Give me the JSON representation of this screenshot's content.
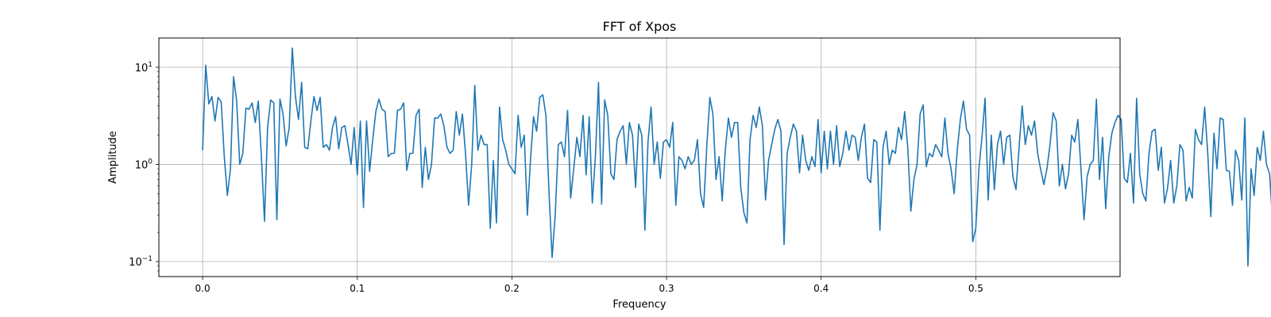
{
  "chart_data": {
    "type": "line",
    "title": "FFT of Xpos",
    "xlabel": "Frequency",
    "ylabel": "Amplitude",
    "xlim": [
      -0.0283,
      0.5933
    ],
    "ylim": [
      0.07,
      20
    ],
    "yscale": "log",
    "grid": true,
    "x_ticks": [
      0.0,
      0.1,
      0.2,
      0.3,
      0.4,
      0.5
    ],
    "x_tick_labels": [
      "0.0",
      "0.1",
      "0.2",
      "0.3",
      "0.4",
      "0.5"
    ],
    "y_ticks": [
      {
        "value": 0.1,
        "base": "10",
        "exp": "−1"
      },
      {
        "value": 1,
        "base": "10",
        "exp": "0"
      },
      {
        "value": 10,
        "base": "10",
        "exp": "1"
      }
    ],
    "line_color": "#1f77b4",
    "series": [
      {
        "x_start": 0.0,
        "x_step": 0.002,
        "values": [
          1.4,
          10.5,
          4.2,
          5.0,
          2.8,
          4.9,
          4.4,
          1.2,
          0.48,
          0.9,
          8.0,
          4.5,
          1.0,
          1.3,
          3.8,
          3.7,
          4.3,
          2.7,
          4.5,
          1.2,
          0.26,
          2.4,
          4.6,
          4.3,
          0.27,
          4.7,
          3.3,
          1.55,
          2.4,
          15.8,
          5.0,
          2.9,
          7.0,
          1.5,
          1.45,
          2.8,
          5.0,
          3.6,
          4.9,
          1.5,
          1.6,
          1.4,
          2.4,
          3.1,
          1.45,
          2.4,
          2.5,
          1.6,
          1.0,
          2.4,
          0.78,
          2.8,
          0.36,
          2.8,
          0.85,
          1.8,
          3.5,
          4.7,
          3.7,
          3.5,
          1.2,
          1.3,
          1.3,
          3.6,
          3.7,
          4.3,
          0.87,
          1.3,
          1.3,
          3.2,
          3.7,
          0.58,
          1.5,
          0.7,
          1.0,
          3.0,
          3.0,
          3.3,
          2.5,
          1.5,
          1.3,
          1.4,
          3.5,
          2.0,
          3.3,
          1.3,
          0.38,
          1.0,
          6.5,
          1.4,
          2.0,
          1.6,
          1.6,
          0.22,
          1.1,
          0.25,
          3.9,
          1.8,
          1.4,
          1.0,
          0.9,
          0.8,
          3.2,
          1.5,
          2.0,
          0.3,
          1.1,
          3.1,
          2.2,
          4.9,
          5.2,
          3.2,
          0.52,
          0.11,
          0.3,
          1.6,
          1.7,
          1.2,
          3.6,
          0.45,
          0.9,
          1.9,
          1.2,
          3.2,
          0.78,
          3.1,
          0.4,
          1.2,
          7.0,
          0.39,
          4.6,
          3.2,
          0.8,
          0.7,
          1.8,
          2.2,
          2.5,
          1.0,
          2.7,
          2.0,
          0.58,
          2.6,
          2.0,
          0.21,
          1.7,
          3.9,
          1.0,
          1.7,
          0.72,
          1.7,
          1.8,
          1.5,
          2.7,
          0.38,
          1.2,
          1.1,
          0.9,
          1.2,
          1.0,
          1.1,
          1.8,
          0.5,
          0.36,
          1.5,
          4.9,
          3.3,
          0.7,
          1.2,
          0.42,
          1.4,
          3.0,
          1.9,
          2.7,
          2.7,
          0.58,
          0.32,
          0.25,
          1.8,
          3.2,
          2.4,
          3.9,
          2.5,
          0.43,
          1.1,
          1.6,
          2.3,
          2.9,
          2.2,
          0.15,
          1.3,
          1.9,
          2.6,
          2.2,
          0.82,
          2.0,
          1.1,
          0.87,
          1.2,
          0.95,
          2.9,
          0.82,
          2.2,
          0.9,
          2.2,
          1.0,
          2.5,
          0.95,
          1.3,
          2.2,
          1.4,
          2.0,
          1.9,
          1.1,
          1.9,
          2.6,
          0.72,
          0.65,
          1.8,
          1.7,
          0.21,
          1.5,
          2.2,
          1.0,
          1.4,
          1.3,
          2.4,
          1.8,
          3.5,
          1.5,
          0.33,
          0.7,
          1.0,
          3.3,
          4.1,
          0.95,
          1.3,
          1.2,
          1.6,
          1.4,
          1.2,
          3.0,
          1.3,
          0.9,
          0.5,
          1.4,
          2.9,
          4.5,
          2.3,
          2.0,
          0.16,
          0.22,
          0.9,
          1.9,
          4.8,
          0.43,
          2.0,
          0.55,
          1.6,
          2.2,
          1.0,
          1.9,
          2.0,
          0.75,
          0.55,
          1.5,
          4.0,
          1.6,
          2.5,
          2.0,
          2.8,
          1.3,
          0.88,
          0.62,
          0.9,
          1.6,
          3.4,
          2.8,
          0.6,
          1.0,
          0.56,
          0.8,
          2.0,
          1.7,
          2.9,
          0.9,
          0.27,
          0.75,
          1.0,
          1.1,
          4.7,
          0.7,
          1.9,
          0.35,
          1.2,
          2.1,
          2.7,
          3.2,
          2.9,
          0.72,
          0.65,
          1.3,
          0.4,
          4.8,
          0.8,
          0.5,
          0.42,
          1.3,
          2.2,
          2.3,
          0.87,
          1.5,
          0.4,
          0.57,
          1.1,
          0.4,
          0.6,
          1.6,
          1.4,
          0.42,
          0.58,
          0.45,
          2.3,
          1.8,
          1.6,
          3.9,
          1.3,
          0.29,
          2.1,
          0.9,
          3.0,
          2.9,
          0.87,
          0.85,
          0.38,
          1.4,
          1.1,
          0.43,
          3.0,
          0.09,
          0.9,
          0.48,
          1.5,
          1.1,
          2.2,
          1.0,
          0.8,
          0.25,
          0.15,
          2.1,
          1.4,
          1.2,
          0.5,
          0.43,
          0.43,
          1.8,
          1.8,
          2.5,
          3.2,
          2.5,
          2.5,
          0.84,
          1.5,
          0.95,
          1.2,
          1.7,
          0.8,
          0.5,
          0.8,
          0.8,
          2.2,
          1.5,
          0.33,
          1.7,
          0.8,
          0.55,
          1.2,
          1.6,
          3.7,
          1.6,
          1.3,
          2.0,
          0.26,
          2.0,
          0.85,
          2.7,
          2.4,
          0.15,
          0.55,
          1.5,
          2.3,
          0.55,
          0.44,
          0.9,
          0.45,
          0.9
        ]
      }
    ]
  }
}
